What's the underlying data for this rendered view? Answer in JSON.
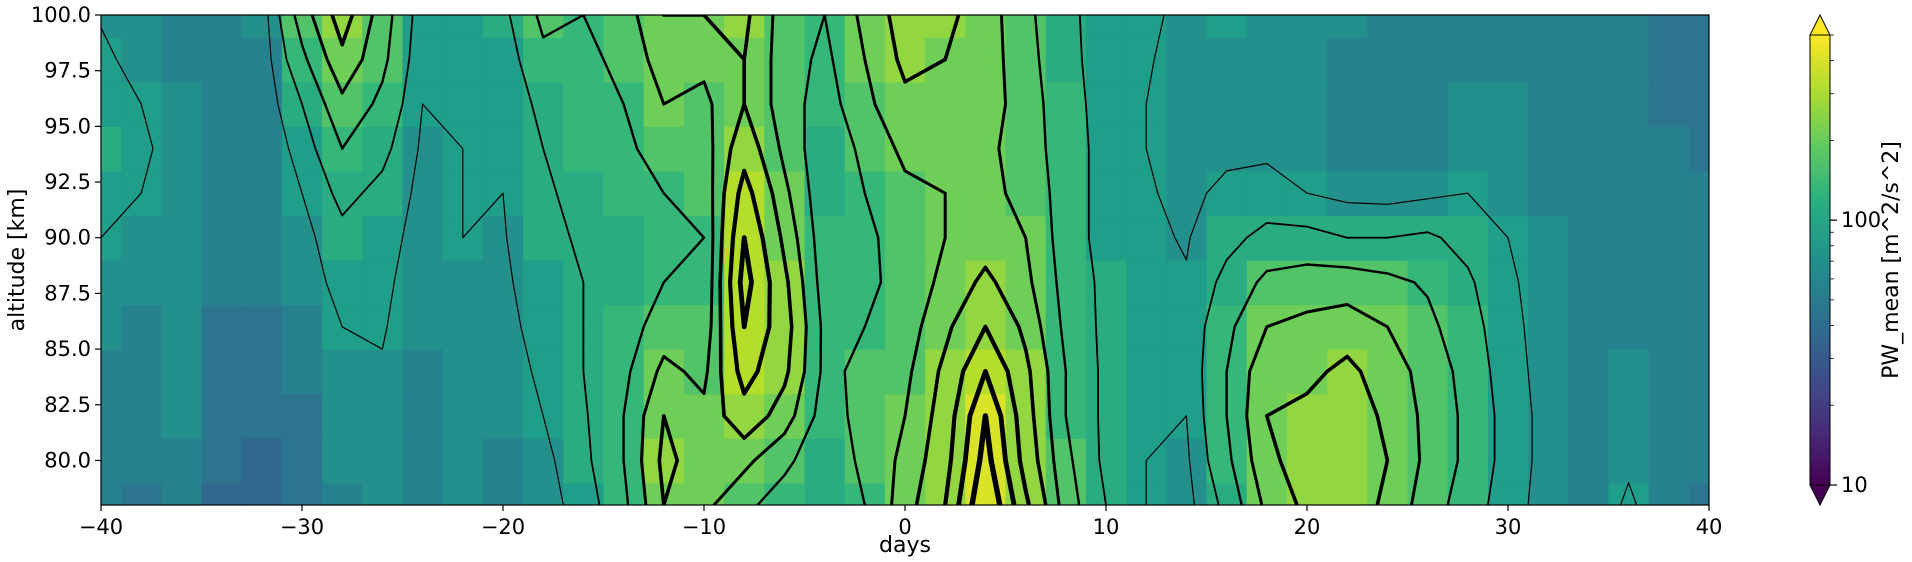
{
  "chart_data": {
    "type": "heatmap",
    "title": "",
    "xlabel": "days",
    "ylabel": "altitude [km]",
    "xlim": [
      -40,
      40
    ],
    "ylim": [
      78,
      100
    ],
    "x_ticks": [
      -40,
      -30,
      -20,
      -10,
      0,
      10,
      20,
      30,
      40
    ],
    "x_tick_labels": [
      "−40",
      "−30",
      "−20",
      "−10",
      "0",
      "10",
      "20",
      "30",
      "40"
    ],
    "y_ticks": [
      80,
      82.5,
      85,
      87.5,
      90,
      92.5,
      95,
      97.5,
      100
    ],
    "y_tick_labels": [
      "80.0",
      "82.5",
      "85.0",
      "87.5",
      "90.0",
      "92.5",
      "95.0",
      "97.5",
      "100.0"
    ],
    "colorbar": {
      "label": "PW_mean [m^2/s^2]",
      "scale": "log",
      "colormap": "viridis",
      "range": [
        10,
        500
      ],
      "extend": "both",
      "tick_values": [
        10,
        100
      ],
      "tick_labels": [
        "10",
        "100"
      ]
    },
    "x": [
      -40,
      -38,
      -36,
      -34,
      -32,
      -30,
      -28,
      -26,
      -24,
      -22,
      -20,
      -18,
      -16,
      -14,
      -12,
      -10,
      -8,
      -6,
      -4,
      -2,
      0,
      2,
      4,
      6,
      8,
      10,
      12,
      14,
      16,
      18,
      20,
      22,
      24,
      26,
      28,
      30,
      32,
      34,
      36,
      38,
      40
    ],
    "y": [
      78,
      80,
      82,
      84,
      86,
      88,
      90,
      92,
      94,
      96,
      98,
      100
    ],
    "z_description": "PW_mean values (m^2/s^2), rows = altitude, cols = days",
    "z": [
      [
        55,
        48,
        60,
        40,
        38,
        45,
        60,
        70,
        55,
        65,
        60,
        70,
        90,
        140,
        230,
        200,
        160,
        130,
        110,
        150,
        210,
        280,
        430,
        290,
        170,
        110,
        80,
        70,
        120,
        200,
        240,
        260,
        220,
        170,
        130,
        90,
        70,
        60,
        85,
        60,
        50
      ],
      [
        58,
        52,
        62,
        42,
        40,
        48,
        65,
        72,
        58,
        68,
        62,
        72,
        100,
        150,
        240,
        210,
        200,
        160,
        120,
        160,
        200,
        260,
        400,
        260,
        160,
        100,
        80,
        75,
        140,
        220,
        250,
        270,
        230,
        180,
        140,
        95,
        70,
        60,
        75,
        60,
        52
      ],
      [
        60,
        55,
        65,
        45,
        42,
        50,
        68,
        75,
        60,
        70,
        65,
        80,
        105,
        150,
        230,
        200,
        260,
        210,
        130,
        165,
        190,
        250,
        380,
        250,
        150,
        100,
        85,
        80,
        150,
        230,
        240,
        260,
        220,
        180,
        140,
        95,
        70,
        62,
        68,
        60,
        54
      ],
      [
        62,
        58,
        68,
        48,
        45,
        55,
        72,
        78,
        62,
        72,
        68,
        85,
        110,
        140,
        200,
        180,
        300,
        240,
        140,
        160,
        180,
        240,
        330,
        240,
        150,
        100,
        90,
        85,
        150,
        220,
        220,
        240,
        210,
        175,
        135,
        90,
        70,
        62,
        65,
        60,
        55
      ],
      [
        66,
        62,
        70,
        50,
        48,
        60,
        80,
        82,
        65,
        75,
        72,
        90,
        110,
        130,
        170,
        160,
        330,
        250,
        140,
        150,
        170,
        220,
        280,
        220,
        140,
        100,
        90,
        85,
        140,
        190,
        200,
        210,
        190,
        160,
        125,
        88,
        68,
        62,
        62,
        60,
        56
      ],
      [
        72,
        68,
        72,
        55,
        52,
        65,
        90,
        85,
        68,
        78,
        75,
        95,
        110,
        120,
        150,
        150,
        350,
        240,
        130,
        140,
        165,
        200,
        240,
        200,
        135,
        100,
        88,
        82,
        120,
        160,
        170,
        170,
        160,
        145,
        115,
        85,
        66,
        60,
        60,
        58,
        55
      ],
      [
        80,
        75,
        72,
        60,
        55,
        70,
        100,
        90,
        70,
        80,
        78,
        100,
        115,
        120,
        140,
        150,
        330,
        220,
        125,
        140,
        170,
        190,
        210,
        190,
        130,
        95,
        85,
        78,
        100,
        120,
        120,
        110,
        110,
        115,
        100,
        80,
        64,
        58,
        58,
        56,
        54
      ],
      [
        90,
        80,
        70,
        62,
        58,
        80,
        120,
        100,
        72,
        80,
        80,
        105,
        120,
        130,
        150,
        160,
        300,
        200,
        120,
        150,
        180,
        190,
        200,
        180,
        130,
        95,
        82,
        75,
        85,
        90,
        80,
        72,
        70,
        75,
        80,
        72,
        62,
        56,
        56,
        54,
        52
      ],
      [
        100,
        85,
        68,
        62,
        60,
        90,
        150,
        120,
        75,
        80,
        82,
        110,
        125,
        140,
        170,
        170,
        260,
        180,
        120,
        160,
        200,
        200,
        200,
        170,
        130,
        95,
        80,
        72,
        75,
        75,
        70,
        62,
        60,
        62,
        70,
        68,
        60,
        54,
        55,
        52,
        50
      ],
      [
        95,
        80,
        65,
        60,
        60,
        110,
        180,
        140,
        80,
        80,
        85,
        120,
        130,
        150,
        190,
        180,
        230,
        170,
        130,
        180,
        220,
        220,
        210,
        170,
        125,
        95,
        80,
        70,
        70,
        70,
        68,
        60,
        58,
        58,
        65,
        65,
        58,
        52,
        54,
        50,
        50
      ],
      [
        85,
        72,
        62,
        58,
        62,
        140,
        220,
        160,
        85,
        82,
        90,
        140,
        140,
        160,
        210,
        200,
        230,
        170,
        140,
        190,
        240,
        230,
        210,
        165,
        120,
        95,
        82,
        72,
        72,
        72,
        68,
        62,
        60,
        58,
        62,
        62,
        56,
        52,
        54,
        50,
        50
      ],
      [
        78,
        68,
        60,
        56,
        64,
        170,
        250,
        170,
        90,
        85,
        100,
        160,
        150,
        170,
        230,
        230,
        240,
        170,
        150,
        200,
        250,
        240,
        210,
        160,
        118,
        95,
        84,
        75,
        80,
        78,
        70,
        65,
        62,
        60,
        60,
        60,
        55,
        52,
        52,
        50,
        50
      ]
    ]
  }
}
